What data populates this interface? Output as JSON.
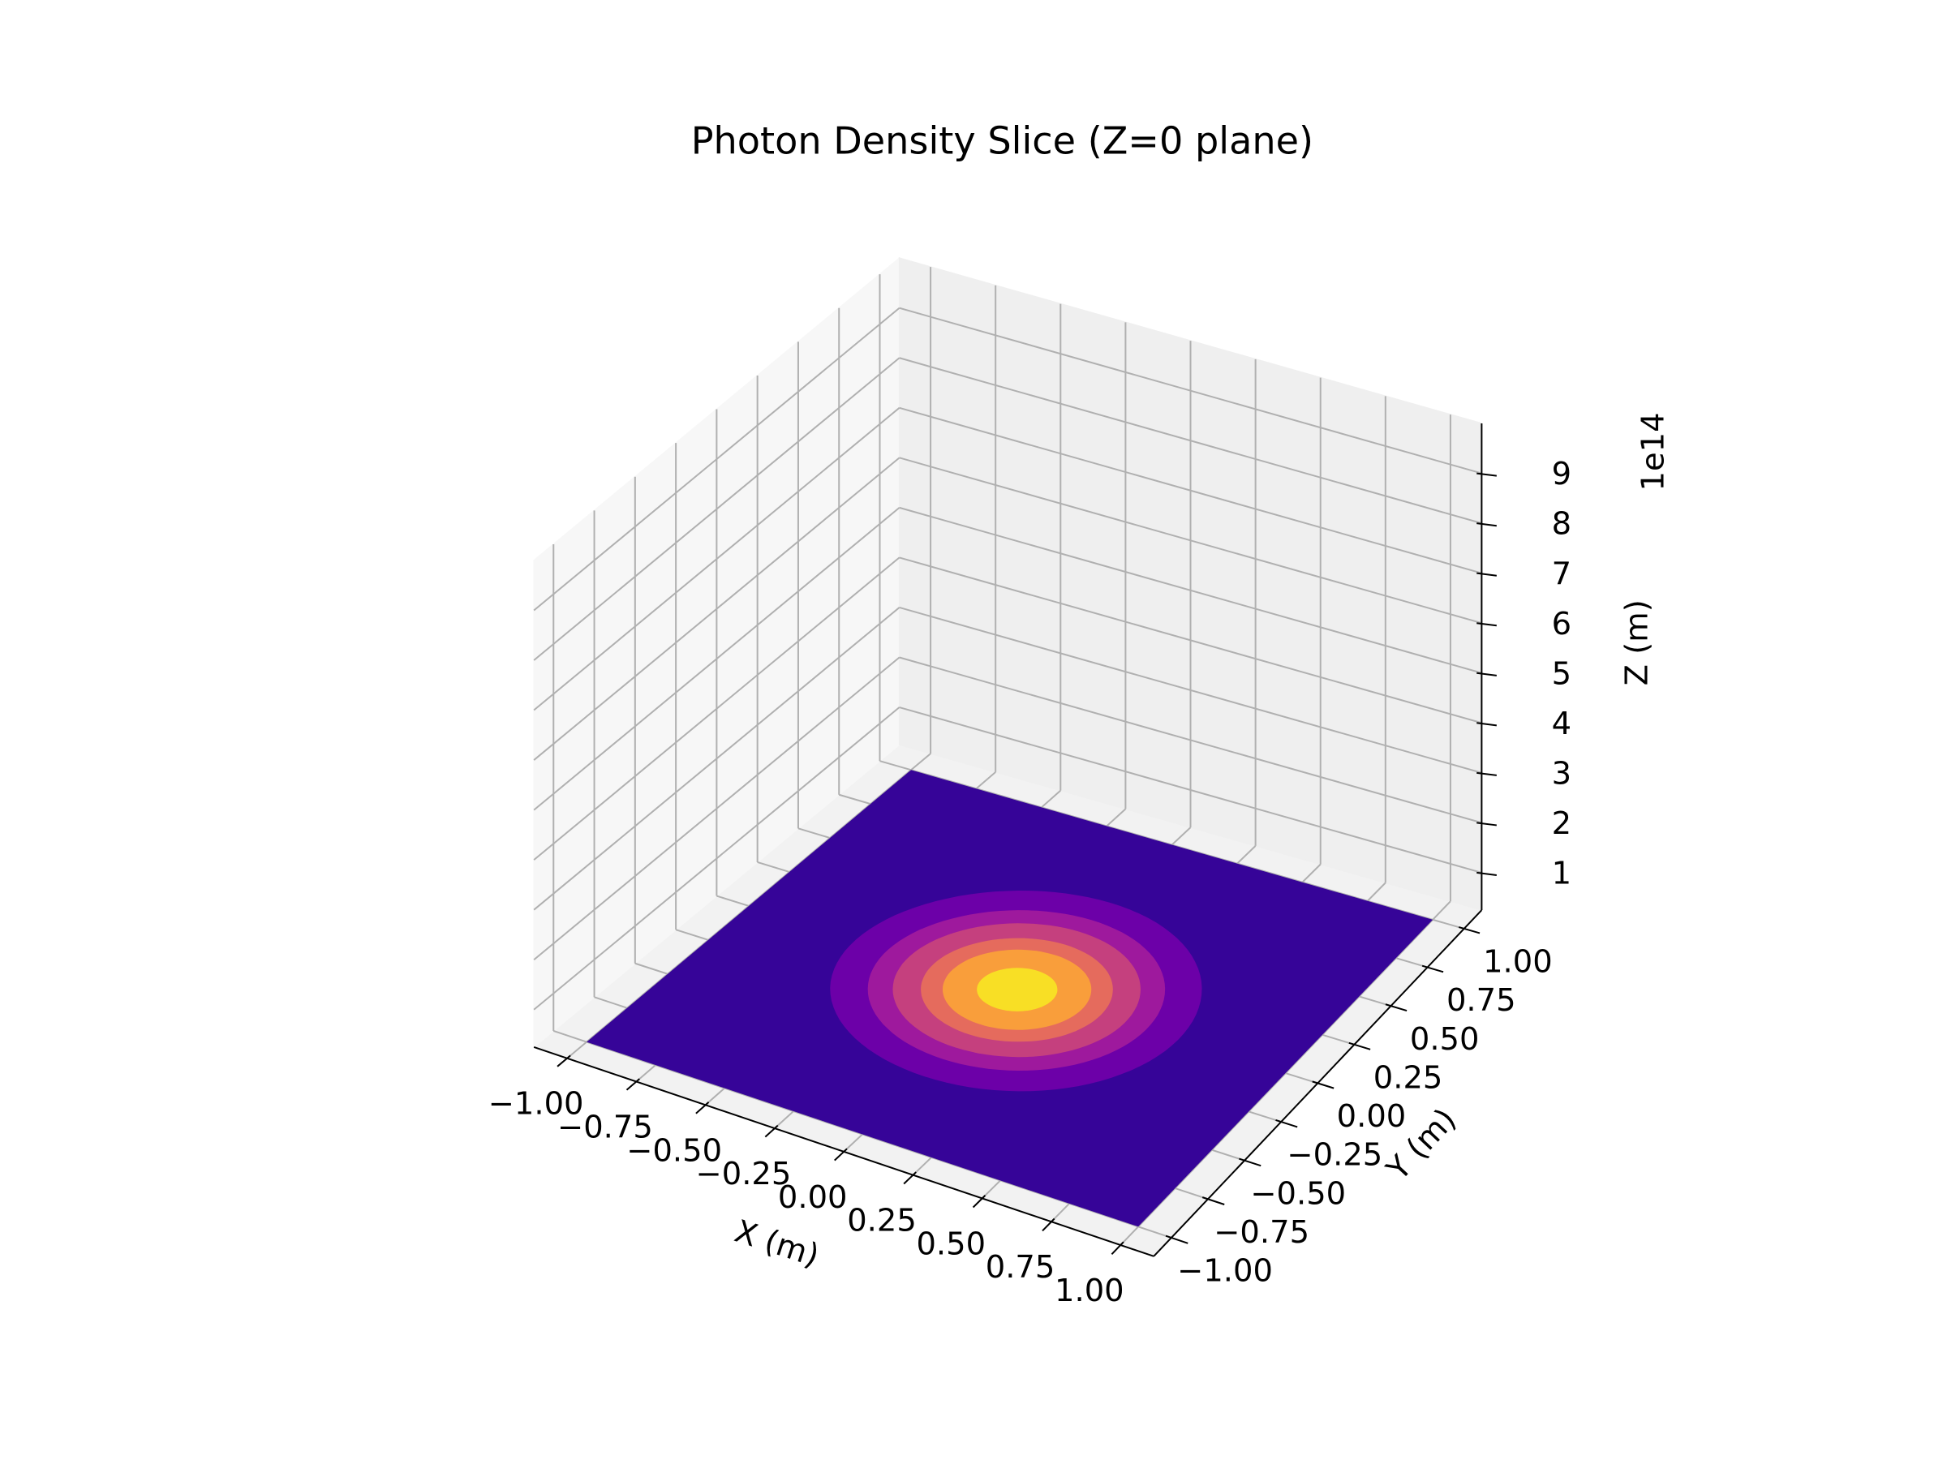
{
  "chart_data": {
    "type": "contour3d",
    "title": "Photon Density Slice (Z=0 plane)",
    "x_label": "X (m)",
    "y_label": "Y (m)",
    "z_label": "Z (m)",
    "z_offset_label": "1e14",
    "xlim": [
      -1.12,
      1.12
    ],
    "ylim": [
      -1.12,
      1.12
    ],
    "zlim": [
      0.25,
      10
    ],
    "xticks": [
      {
        "value": -1,
        "label": "−1.00"
      },
      {
        "value": -0.75,
        "label": "−0.75"
      },
      {
        "value": -0.5,
        "label": "−0.50"
      },
      {
        "value": -0.25,
        "label": "−0.25"
      },
      {
        "value": 0,
        "label": "0.00"
      },
      {
        "value": 0.25,
        "label": "0.25"
      },
      {
        "value": 0.5,
        "label": "0.50"
      },
      {
        "value": 0.75,
        "label": "0.75"
      },
      {
        "value": 1,
        "label": "1.00"
      }
    ],
    "yticks": [
      {
        "value": -1,
        "label": "−1.00"
      },
      {
        "value": -0.75,
        "label": "−0.75"
      },
      {
        "value": -0.5,
        "label": "−0.50"
      },
      {
        "value": -0.25,
        "label": "−0.25"
      },
      {
        "value": 0,
        "label": "0.00"
      },
      {
        "value": 0.25,
        "label": "0.25"
      },
      {
        "value": 0.5,
        "label": "0.50"
      },
      {
        "value": 0.75,
        "label": "0.75"
      },
      {
        "value": 1,
        "label": "1.00"
      }
    ],
    "zticks": [
      1,
      2,
      3,
      4,
      5,
      6,
      7,
      8,
      9
    ],
    "grid": true,
    "x_extent": [
      -1,
      1
    ],
    "y_extent": [
      -1,
      1
    ],
    "base_color": "#360498",
    "contours": [
      {
        "color": "#6c00a8",
        "radius": 0.6
      },
      {
        "color": "#9e199d",
        "radius": 0.48
      },
      {
        "color": "#c5407e",
        "radius": 0.4
      },
      {
        "color": "#e56b5d",
        "radius": 0.31
      },
      {
        "color": "#f99e3b",
        "radius": 0.24
      },
      {
        "color": "#f8df25",
        "radius": 0.13
      }
    ]
  }
}
